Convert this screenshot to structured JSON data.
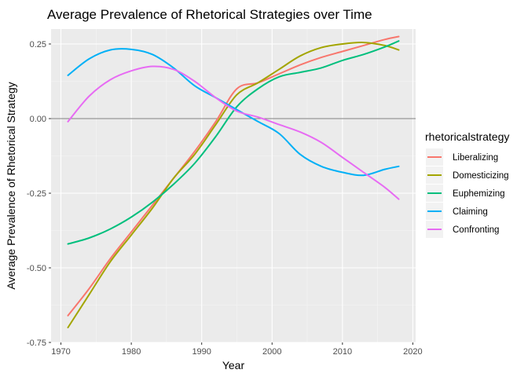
{
  "chart_data": {
    "type": "line",
    "title": "Average Prevalence of Rhetorical Strategies over Time",
    "xlabel": "Year",
    "ylabel": "Average Prevalence of Rhetorical Strategy",
    "xlim": [
      1968.6,
      2020.4
    ],
    "ylim": [
      -0.75,
      0.3
    ],
    "x_ticks": [
      1970,
      1980,
      1990,
      2000,
      2010,
      2020
    ],
    "x_tick_labels": [
      "1970",
      "1980",
      "1990",
      "2000",
      "2010",
      "2020"
    ],
    "y_ticks": [
      -0.75,
      -0.5,
      -0.25,
      0.0,
      0.25
    ],
    "y_tick_labels": [
      "-0.75",
      "-0.50",
      "-0.25",
      "0.00",
      "0.25"
    ],
    "reference_line_y": 0,
    "grid": true,
    "legend": {
      "title": "rhetoricalstrategy",
      "position": "right"
    },
    "series": [
      {
        "name": "Liberalizing",
        "color": "#F8766D",
        "x": [
          1971,
          1974,
          1977,
          1980,
          1983,
          1986,
          1989,
          1992,
          1995,
          1998,
          2001,
          2004,
          2007,
          2010,
          2013,
          2016,
          2018
        ],
        "y": [
          -0.66,
          -0.57,
          -0.47,
          -0.38,
          -0.29,
          -0.2,
          -0.11,
          -0.01,
          0.1,
          0.12,
          0.15,
          0.18,
          0.205,
          0.225,
          0.245,
          0.265,
          0.275
        ]
      },
      {
        "name": "Domesticizing",
        "color": "#A3A500",
        "x": [
          1971,
          1974,
          1977,
          1980,
          1983,
          1986,
          1989,
          1992,
          1995,
          1998,
          2001,
          2004,
          2007,
          2010,
          2013,
          2016,
          2018
        ],
        "y": [
          -0.7,
          -0.59,
          -0.48,
          -0.39,
          -0.3,
          -0.2,
          -0.12,
          -0.02,
          0.08,
          0.12,
          0.165,
          0.21,
          0.238,
          0.25,
          0.255,
          0.245,
          0.23
        ]
      },
      {
        "name": "Euphemizing",
        "color": "#00BF7D",
        "x": [
          1971,
          1974,
          1977,
          1980,
          1983,
          1986,
          1989,
          1992,
          1995,
          1998,
          2001,
          2004,
          2007,
          2010,
          2013,
          2016,
          2018
        ],
        "y": [
          -0.42,
          -0.4,
          -0.37,
          -0.33,
          -0.28,
          -0.22,
          -0.15,
          -0.06,
          0.04,
          0.1,
          0.14,
          0.155,
          0.17,
          0.195,
          0.215,
          0.24,
          0.26
        ]
      },
      {
        "name": "Claiming",
        "color": "#00B0F6",
        "x": [
          1971,
          1974,
          1977,
          1980,
          1983,
          1986,
          1989,
          1992,
          1995,
          1998,
          2001,
          2004,
          2007,
          2010,
          2013,
          2016,
          2018
        ],
        "y": [
          0.145,
          0.2,
          0.23,
          0.232,
          0.215,
          0.17,
          0.11,
          0.07,
          0.03,
          -0.01,
          -0.05,
          -0.12,
          -0.16,
          -0.18,
          -0.19,
          -0.17,
          -0.16
        ]
      },
      {
        "name": "Confronting",
        "color": "#E76BF3",
        "x": [
          1971,
          1974,
          1977,
          1980,
          1983,
          1986,
          1989,
          1992,
          1995,
          1998,
          2001,
          2004,
          2007,
          2010,
          2013,
          2016,
          2018
        ],
        "y": [
          -0.01,
          0.075,
          0.13,
          0.16,
          0.175,
          0.165,
          0.125,
          0.07,
          0.025,
          0.005,
          -0.02,
          -0.045,
          -0.08,
          -0.13,
          -0.18,
          -0.23,
          -0.27
        ]
      }
    ]
  }
}
